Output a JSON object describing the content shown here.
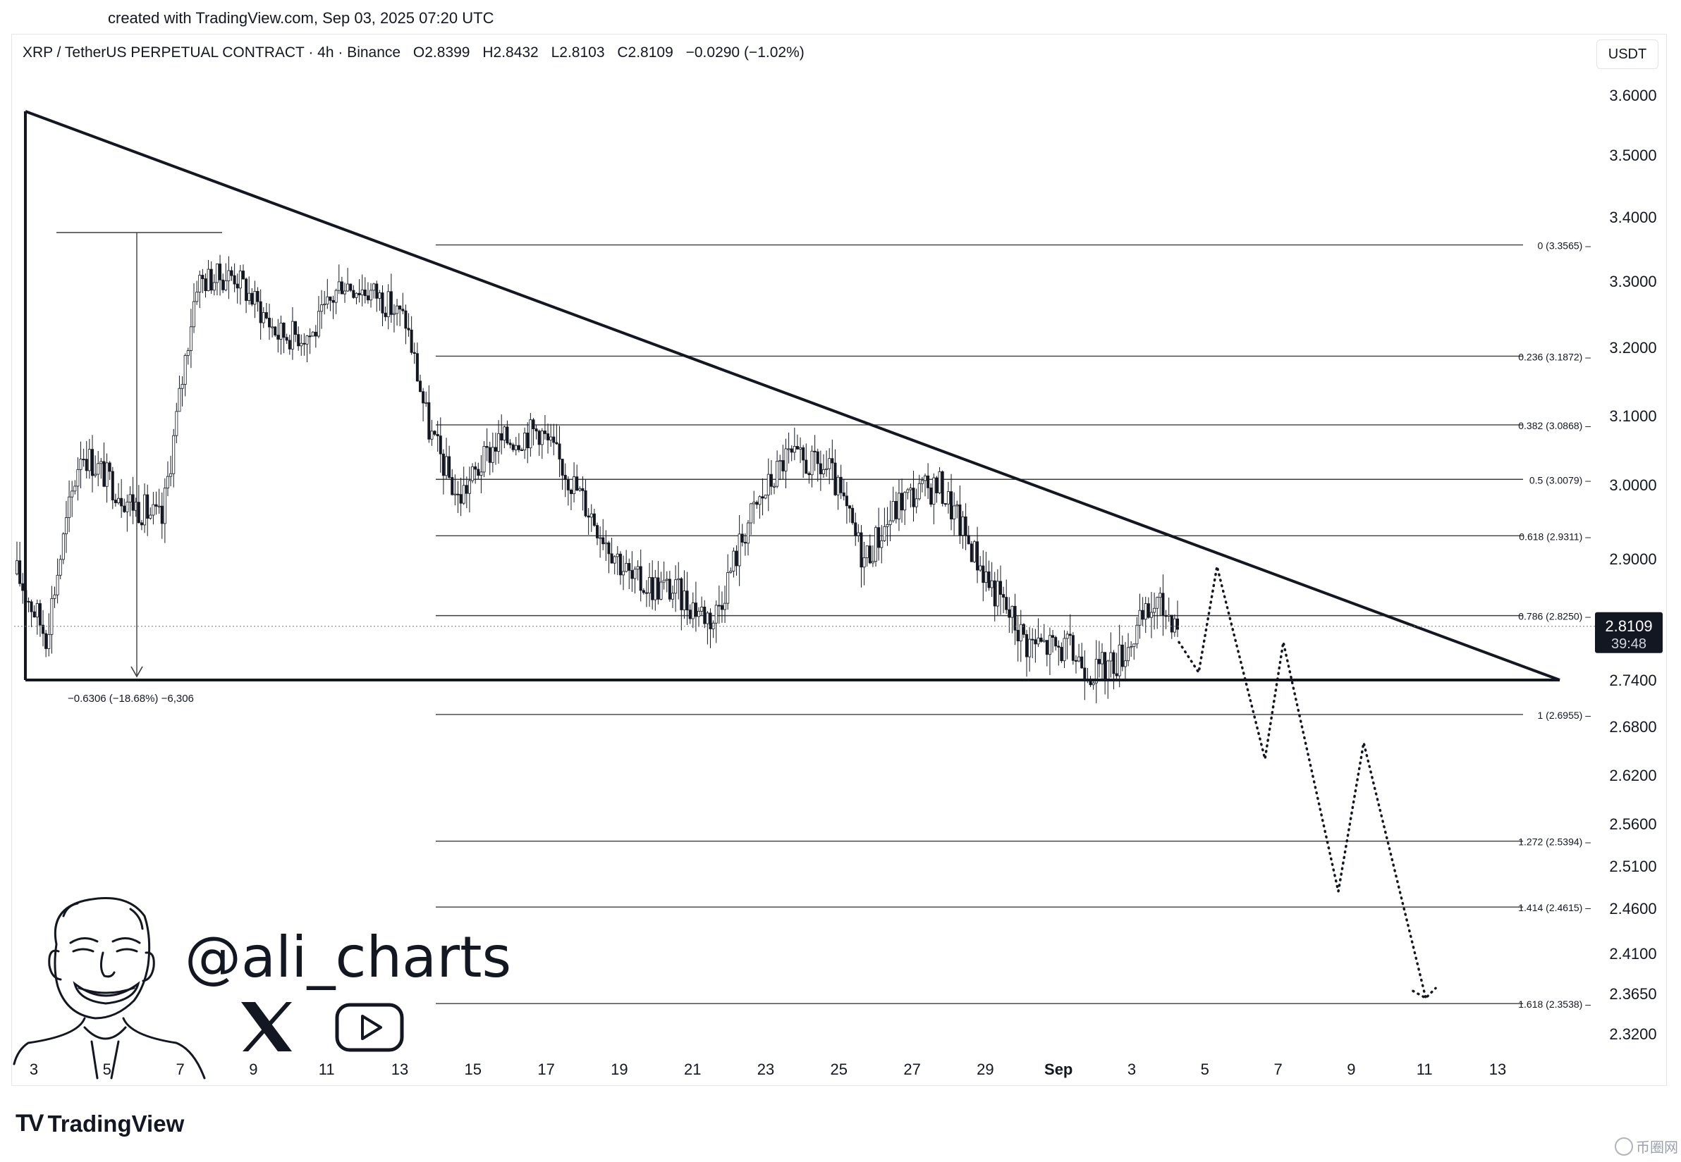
{
  "header": {
    "credit": "created with TradingView.com, Sep 03, 2025 07:20 UTC"
  },
  "legend": {
    "symbol": "XRP / TetherUS PERPETUAL CONTRACT · 4h · Binance",
    "open": "O2.8399",
    "high": "H2.8432",
    "low": "L2.8103",
    "close": "C2.8109",
    "change": "−0.0290 (−1.02%)"
  },
  "unit_label": "USDT",
  "price_tag": {
    "value": "2.8109",
    "countdown": "39:48",
    "color": "#131722"
  },
  "measure_label": "−0.6306 (−18.68%) −6,306",
  "branding": {
    "handle": "@ali_charts",
    "logo_text": "TradingView",
    "watermark": "币圈网"
  },
  "icons": [
    "x-icon",
    "youtube-icon",
    "tradingview-logo-icon",
    "avatar-caricature"
  ],
  "chart_data": {
    "type": "candlestick",
    "title": "",
    "ylim": [
      2.3,
      3.65
    ],
    "y_ticks": [
      "3.6000",
      "3.5000",
      "3.4000",
      "3.3000",
      "3.2000",
      "3.1000",
      "3.0000",
      "2.9000",
      "2.7400",
      "2.6800",
      "2.6200",
      "2.5600",
      "2.5100",
      "2.4600",
      "2.4100",
      "2.3650",
      "2.3200"
    ],
    "x_ticks": [
      "3",
      "5",
      "7",
      "9",
      "11",
      "13",
      "15",
      "17",
      "19",
      "21",
      "23",
      "25",
      "27",
      "29",
      "Sep",
      "3",
      "5",
      "7",
      "9",
      "11",
      "13"
    ],
    "fibonacci": [
      {
        "label": "0 (3.3565)",
        "value": 3.3565
      },
      {
        "label": "0.236 (3.1872)",
        "value": 3.1872
      },
      {
        "label": "0.382 (3.0868)",
        "value": 3.0868
      },
      {
        "label": "0.5 (3.0079)",
        "value": 3.0079
      },
      {
        "label": "0.618 (2.9311)",
        "value": 2.9311
      },
      {
        "label": "0.786 (2.8250)",
        "value": 2.825
      },
      {
        "label": "1 (2.6955)",
        "value": 2.6955
      },
      {
        "label": "1.272 (2.5394)",
        "value": 2.5394
      },
      {
        "label": "1.414 (2.4615)",
        "value": 2.4615
      },
      {
        "label": "1.618 (2.3538)",
        "value": 2.3538
      }
    ],
    "support": 2.74,
    "last_close": 2.8109,
    "projection": [
      2.79,
      2.75,
      2.89,
      2.64,
      2.79,
      2.48,
      2.66,
      2.36
    ]
  }
}
